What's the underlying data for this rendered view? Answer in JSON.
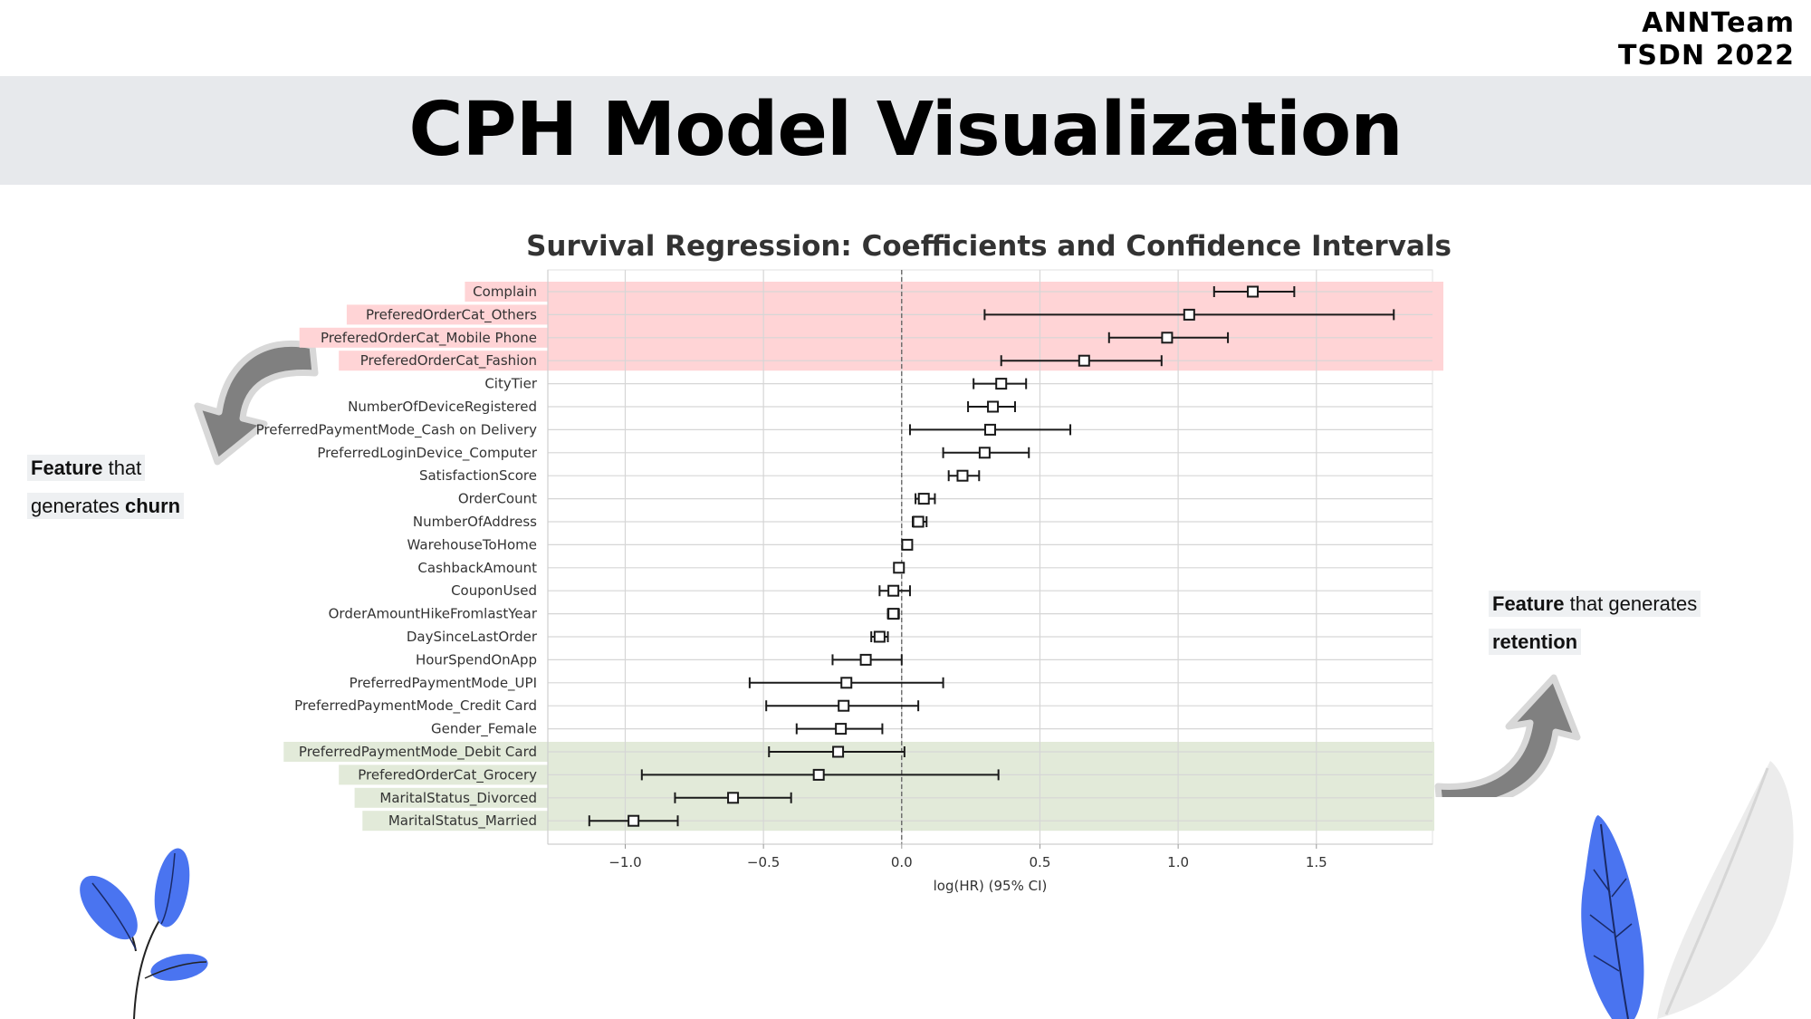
{
  "header": {
    "team": "ANNTeam",
    "event": "TSDN 2022",
    "title": "CPH Model Visualization"
  },
  "callouts": {
    "churn": {
      "bold1": "Feature",
      "text1": " that",
      "text2": "generates ",
      "bold2": "churn"
    },
    "retention": {
      "bold1": "Feature",
      "text1": " that generates",
      "bold2": "retention"
    }
  },
  "colors": {
    "churn_band": "#ffd4d6",
    "retention_band": "#e2ead9",
    "arrow": "#808080",
    "leaf_blue": "#4a74f0",
    "leaf_gray": "#ececec"
  },
  "chart_data": {
    "type": "forest",
    "title": "Survival Regression: Coefficients and Confidence Intervals",
    "xlabel": "log(HR) (95% CI)",
    "xlim": [
      -1.28,
      1.92
    ],
    "xticks": [
      -1.0,
      -0.5,
      0.0,
      0.5,
      1.0,
      1.5
    ],
    "xtick_labels": [
      "−1.0",
      "−0.5",
      "0.0",
      "0.5",
      "1.0",
      "1.5"
    ],
    "grid": true,
    "reference_line": 0.0,
    "rows": [
      {
        "label": "Complain",
        "coef": 1.27,
        "lower": 1.13,
        "upper": 1.42,
        "group": "churn"
      },
      {
        "label": "PreferedOrderCat_Others",
        "coef": 1.04,
        "lower": 0.3,
        "upper": 1.78,
        "group": "churn"
      },
      {
        "label": "PreferedOrderCat_Mobile Phone",
        "coef": 0.96,
        "lower": 0.75,
        "upper": 1.18,
        "group": "churn"
      },
      {
        "label": "PreferedOrderCat_Fashion",
        "coef": 0.66,
        "lower": 0.36,
        "upper": 0.94,
        "group": "churn"
      },
      {
        "label": "CityTier",
        "coef": 0.36,
        "lower": 0.26,
        "upper": 0.45,
        "group": ""
      },
      {
        "label": "NumberOfDeviceRegistered",
        "coef": 0.33,
        "lower": 0.24,
        "upper": 0.41,
        "group": ""
      },
      {
        "label": "PreferredPaymentMode_Cash on Delivery",
        "coef": 0.32,
        "lower": 0.03,
        "upper": 0.61,
        "group": ""
      },
      {
        "label": "PreferredLoginDevice_Computer",
        "coef": 0.3,
        "lower": 0.15,
        "upper": 0.46,
        "group": ""
      },
      {
        "label": "SatisfactionScore",
        "coef": 0.22,
        "lower": 0.17,
        "upper": 0.28,
        "group": ""
      },
      {
        "label": "OrderCount",
        "coef": 0.08,
        "lower": 0.05,
        "upper": 0.12,
        "group": ""
      },
      {
        "label": "NumberOfAddress",
        "coef": 0.06,
        "lower": 0.04,
        "upper": 0.09,
        "group": ""
      },
      {
        "label": "WarehouseToHome",
        "coef": 0.02,
        "lower": 0.01,
        "upper": 0.03,
        "group": ""
      },
      {
        "label": "CashbackAmount",
        "coef": -0.01,
        "lower": -0.02,
        "upper": 0.0,
        "group": ""
      },
      {
        "label": "CouponUsed",
        "coef": -0.03,
        "lower": -0.08,
        "upper": 0.03,
        "group": ""
      },
      {
        "label": "OrderAmountHikeFromlastYear",
        "coef": -0.03,
        "lower": -0.05,
        "upper": -0.01,
        "group": ""
      },
      {
        "label": "DaySinceLastOrder",
        "coef": -0.08,
        "lower": -0.11,
        "upper": -0.05,
        "group": ""
      },
      {
        "label": "HourSpendOnApp",
        "coef": -0.13,
        "lower": -0.25,
        "upper": 0.0,
        "group": ""
      },
      {
        "label": "PreferredPaymentMode_UPI",
        "coef": -0.2,
        "lower": -0.55,
        "upper": 0.15,
        "group": ""
      },
      {
        "label": "PreferredPaymentMode_Credit Card",
        "coef": -0.21,
        "lower": -0.49,
        "upper": 0.06,
        "group": ""
      },
      {
        "label": "Gender_Female",
        "coef": -0.22,
        "lower": -0.38,
        "upper": -0.07,
        "group": ""
      },
      {
        "label": "PreferredPaymentMode_Debit Card",
        "coef": -0.23,
        "lower": -0.48,
        "upper": 0.01,
        "group": "retention"
      },
      {
        "label": "PreferedOrderCat_Grocery",
        "coef": -0.3,
        "lower": -0.94,
        "upper": 0.35,
        "group": "retention"
      },
      {
        "label": "MaritalStatus_Divorced",
        "coef": -0.61,
        "lower": -0.82,
        "upper": -0.4,
        "group": "retention"
      },
      {
        "label": "MaritalStatus_Married",
        "coef": -0.97,
        "lower": -1.13,
        "upper": -0.81,
        "group": "retention"
      }
    ]
  }
}
